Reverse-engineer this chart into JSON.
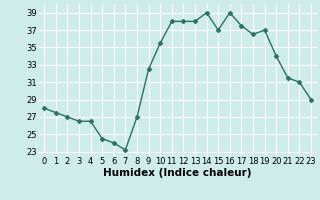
{
  "x": [
    0,
    1,
    2,
    3,
    4,
    5,
    6,
    7,
    8,
    9,
    10,
    11,
    12,
    13,
    14,
    15,
    16,
    17,
    18,
    19,
    20,
    21,
    22,
    23
  ],
  "y": [
    28,
    27.5,
    27,
    26.5,
    26.5,
    24.5,
    24,
    23.2,
    27,
    32.5,
    35.5,
    38,
    38,
    38,
    39,
    37,
    39,
    37.5,
    36.5,
    37,
    34,
    31.5,
    31,
    29
  ],
  "line_color": "#2d7066",
  "marker": "D",
  "marker_size": 2.5,
  "xlabel": "Humidex (Indice chaleur)",
  "xlabel_fontsize": 7.5,
  "ylabel_ticks": [
    23,
    25,
    27,
    29,
    31,
    33,
    35,
    37,
    39
  ],
  "xticks": [
    0,
    1,
    2,
    3,
    4,
    5,
    6,
    7,
    8,
    9,
    10,
    11,
    12,
    13,
    14,
    15,
    16,
    17,
    18,
    19,
    20,
    21,
    22,
    23
  ],
  "xlim": [
    -0.5,
    23.5
  ],
  "ylim": [
    22.5,
    40
  ],
  "bg_color": "#ceecea",
  "grid_color": "#ffffff",
  "tick_fontsize": 6,
  "line_width": 1.0
}
